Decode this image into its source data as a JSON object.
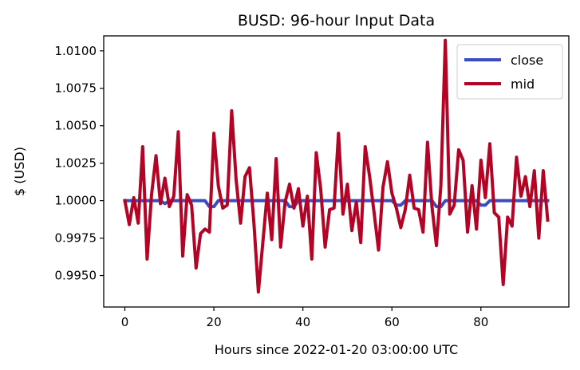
{
  "chart_data": {
    "type": "line",
    "title": "BUSD: 96-hour Input Data",
    "xlabel": "Hours since 2022-01-20 03:00:00 UTC",
    "ylabel": "$ (USD)",
    "xlim": [
      -4.75,
      99.75
    ],
    "ylim": [
      0.9929,
      1.011
    ],
    "xticks": [
      0,
      20,
      40,
      60,
      80
    ],
    "yticks": [
      0.995,
      0.9975,
      1.0,
      1.0025,
      1.005,
      1.0075,
      1.01
    ],
    "ytick_labels": [
      "0.9950",
      "0.9975",
      "1.0000",
      "1.0025",
      "1.0050",
      "1.0075",
      "1.0100"
    ],
    "grid": false,
    "legend_position": "top-right",
    "x": [
      0,
      1,
      2,
      3,
      4,
      5,
      6,
      7,
      8,
      9,
      10,
      11,
      12,
      13,
      14,
      15,
      16,
      17,
      18,
      19,
      20,
      21,
      22,
      23,
      24,
      25,
      26,
      27,
      28,
      29,
      30,
      31,
      32,
      33,
      34,
      35,
      36,
      37,
      38,
      39,
      40,
      41,
      42,
      43,
      44,
      45,
      46,
      47,
      48,
      49,
      50,
      51,
      52,
      53,
      54,
      55,
      56,
      57,
      58,
      59,
      60,
      61,
      62,
      63,
      64,
      65,
      66,
      67,
      68,
      69,
      70,
      71,
      72,
      73,
      74,
      75,
      76,
      77,
      78,
      79,
      80,
      81,
      82,
      83,
      84,
      85,
      86,
      87,
      88,
      89,
      90,
      91,
      92,
      93,
      94,
      95
    ],
    "series": [
      {
        "name": "close",
        "color": "#3b4cc0",
        "values": [
          1.0,
          1.0,
          1.0,
          1.0,
          1.0,
          1.0,
          1.0,
          1.0,
          1.0,
          0.9998,
          1.0,
          1.0,
          1.0,
          1.0,
          1.0,
          1.0,
          1.0,
          1.0,
          1.0,
          0.9996,
          0.9996,
          1.0,
          1.0,
          1.0,
          1.0,
          1.0,
          1.0,
          1.0,
          1.0,
          1.0,
          1.0,
          1.0,
          1.0,
          1.0,
          1.0,
          1.0,
          1.0,
          0.9996,
          0.9996,
          1.0,
          1.0,
          1.0,
          1.0,
          1.0,
          1.0,
          1.0,
          1.0,
          1.0,
          1.0,
          1.0,
          1.0,
          1.0,
          1.0,
          1.0,
          1.0,
          1.0,
          1.0,
          1.0,
          1.0,
          1.0,
          1.0,
          0.9997,
          0.9997,
          1.0,
          1.0,
          1.0,
          1.0,
          1.0,
          1.0,
          1.0,
          0.9996,
          0.9996,
          1.0,
          1.0,
          1.0,
          1.0,
          1.0,
          1.0,
          1.0,
          1.0,
          0.9997,
          0.9997,
          1.0,
          1.0,
          1.0,
          1.0,
          1.0,
          1.0,
          1.0,
          1.0,
          1.0,
          1.0,
          1.0,
          1.0,
          1.0,
          1.0
        ]
      },
      {
        "name": "mid",
        "color": "#b40426",
        "values": [
          1.0,
          0.9984,
          1.0002,
          0.9985,
          1.0036,
          0.9961,
          1.0004,
          1.003,
          0.9998,
          1.0015,
          0.9996,
          1.0003,
          1.0046,
          0.9963,
          1.0004,
          0.9997,
          0.9955,
          0.9978,
          0.9981,
          0.9979,
          1.0045,
          1.001,
          0.9995,
          0.9997,
          1.006,
          1.0014,
          0.9985,
          1.0016,
          1.0022,
          0.9985,
          0.9939,
          0.9972,
          1.0005,
          0.9974,
          1.0028,
          0.9969,
          0.9999,
          1.0011,
          0.9995,
          1.0008,
          0.9983,
          1.0003,
          0.9961,
          1.0032,
          1.0008,
          0.9969,
          0.9994,
          0.9995,
          1.0045,
          0.9991,
          1.0011,
          0.998,
          0.9999,
          0.9972,
          1.0036,
          1.0016,
          0.9992,
          0.9967,
          1.0009,
          1.0026,
          1.0005,
          0.9995,
          0.9982,
          0.9994,
          1.0017,
          0.9995,
          0.9994,
          0.9979,
          1.0039,
          0.9996,
          0.997,
          1.001,
          1.0107,
          0.9991,
          0.9997,
          1.0034,
          1.0027,
          0.9979,
          1.001,
          0.9981,
          1.0027,
          1.0002,
          1.0038,
          0.9992,
          0.9989,
          0.9944,
          0.9989,
          0.9983,
          1.0029,
          1.0003,
          1.0016,
          0.9996,
          1.002,
          0.9975,
          1.002,
          0.9987
        ]
      }
    ]
  }
}
